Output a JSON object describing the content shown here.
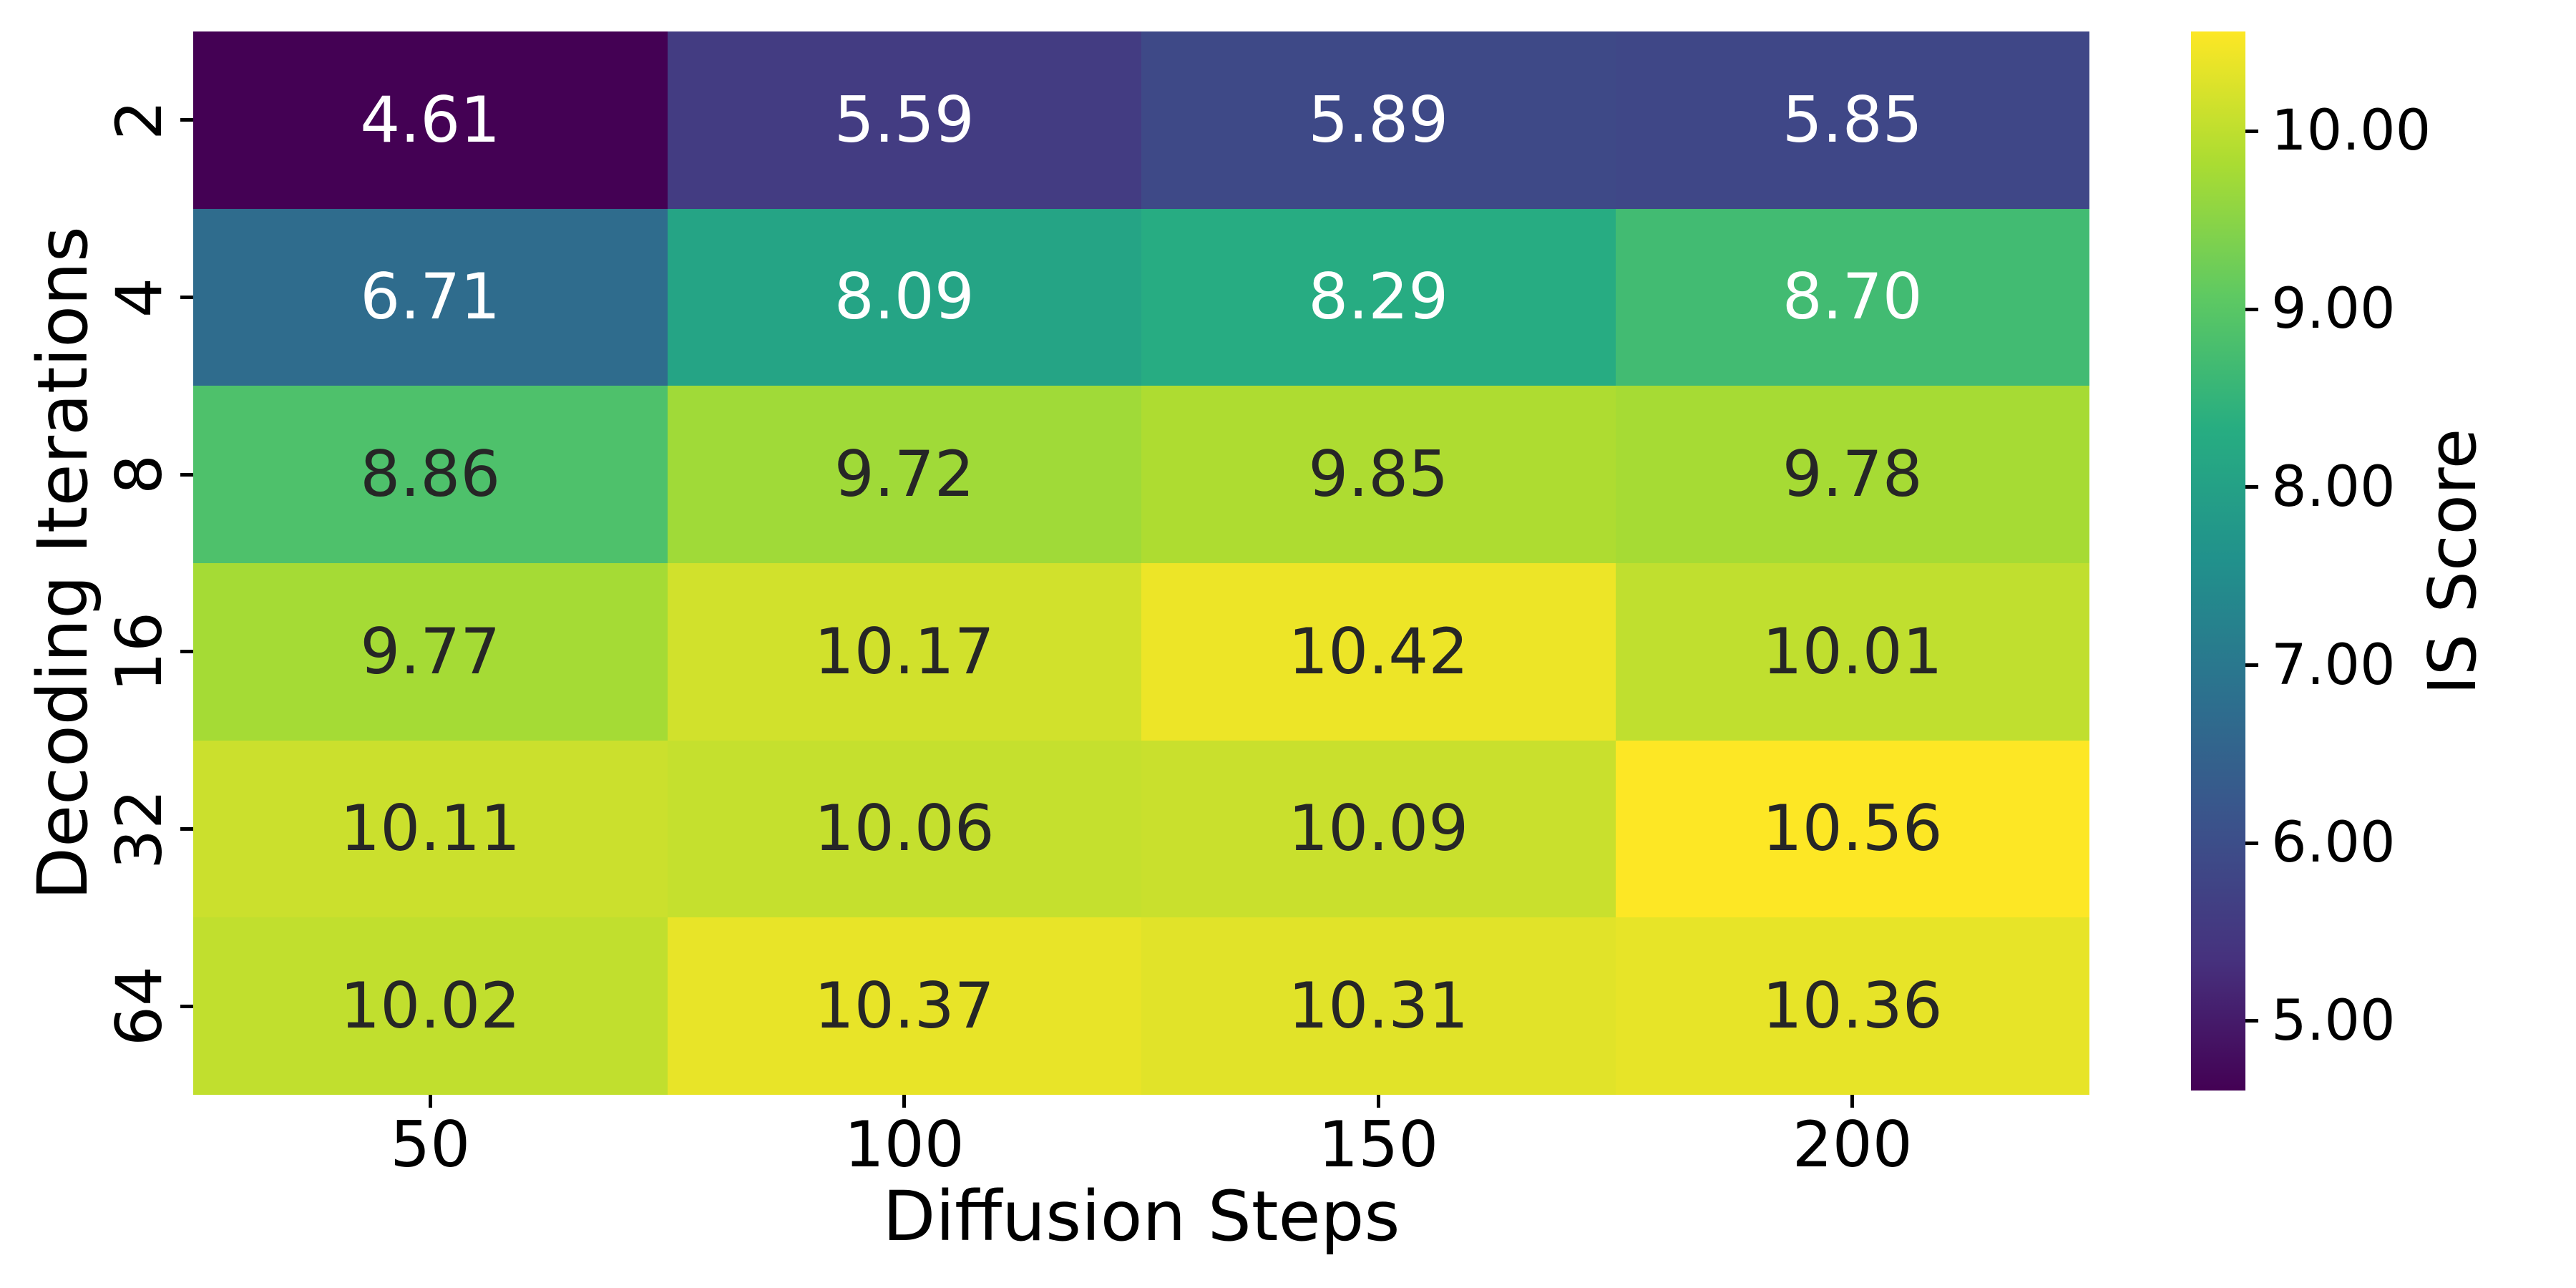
{
  "chart_data": {
    "type": "heatmap",
    "xlabel": "Diffusion Steps",
    "ylabel": "Decoding Iterations",
    "colorbar_label": "IS Score",
    "x_categories": [
      "50",
      "100",
      "150",
      "200"
    ],
    "y_categories": [
      "2",
      "4",
      "8",
      "16",
      "32",
      "64"
    ],
    "matrix": [
      [
        4.61,
        5.59,
        5.89,
        5.85
      ],
      [
        6.71,
        8.09,
        8.29,
        8.7
      ],
      [
        8.86,
        9.72,
        9.85,
        9.78
      ],
      [
        9.77,
        10.17,
        10.42,
        10.01
      ],
      [
        10.11,
        10.06,
        10.09,
        10.56
      ],
      [
        10.02,
        10.37,
        10.31,
        10.36
      ]
    ],
    "value_decimals": 2,
    "colormap": "viridis",
    "vmin": 4.61,
    "vmax": 10.56,
    "colorbar_ticks": [
      {
        "label": "5.00",
        "value": 5.0
      },
      {
        "label": "6.00",
        "value": 6.0
      },
      {
        "label": "7.00",
        "value": 7.0
      },
      {
        "label": "8.00",
        "value": 8.0
      },
      {
        "label": "9.00",
        "value": 9.0
      },
      {
        "label": "10.00",
        "value": 10.0
      }
    ],
    "annotation_colors": {
      "light": "#ffffff",
      "dark": "#262626"
    },
    "colormap_end_colors": {
      "low": "#440154",
      "high": "#fde725"
    },
    "grid": false,
    "legend": false
  }
}
